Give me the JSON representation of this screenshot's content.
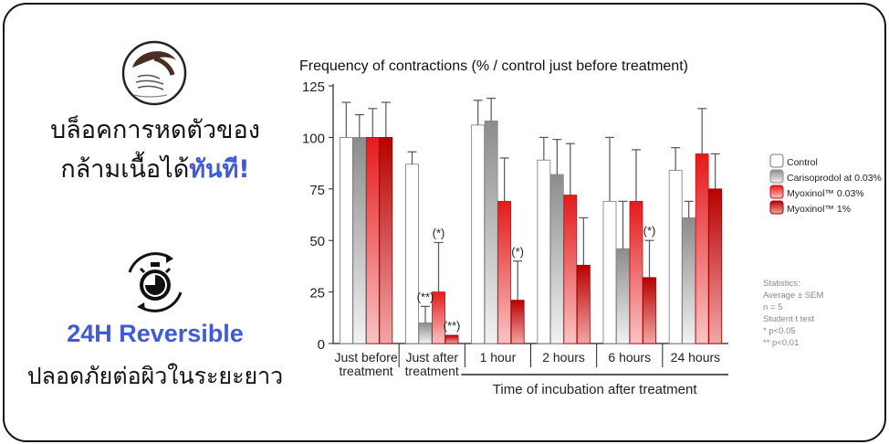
{
  "headline": {
    "line1": "บล็อคการหดตัวของ",
    "line2_prefix": "กล้ามเนื้อได้",
    "line2_accent": "ทันที!"
  },
  "reversible": {
    "title": "24H Reversible",
    "subtitle": "ปลอดภัยต่อผิวในระยะยาว"
  },
  "icons": {
    "face": "face-wrinkle-icon",
    "clock": "stopwatch-cycle-icon"
  },
  "colors": {
    "accent": "#3f5bd9",
    "series": [
      "#ffffff",
      "#9a9a9a",
      "#e41a1c",
      "#c00000"
    ]
  },
  "chart_data": {
    "type": "bar",
    "title": "Frequency of contractions (% / control just before treatment)",
    "xlabel": "Time of incubation after treatment",
    "ylim": [
      0,
      125
    ],
    "yticks": [
      0,
      25,
      50,
      75,
      100,
      125
    ],
    "categories": [
      [
        "Just before",
        "treatment"
      ],
      [
        "Just after",
        "treatment"
      ],
      [
        "1 hour"
      ],
      [
        "2 hours"
      ],
      [
        "6 hours"
      ],
      [
        "24 hours"
      ]
    ],
    "series": [
      {
        "name": "Control",
        "values": [
          100,
          87,
          106,
          89,
          69,
          84
        ],
        "errors": [
          17,
          6,
          12,
          11,
          31,
          11
        ]
      },
      {
        "name": "Carisoprodol at 0.03%",
        "values": [
          100,
          10,
          108,
          82,
          46,
          61
        ],
        "errors": [
          11,
          8,
          11,
          17,
          23,
          8
        ]
      },
      {
        "name": "Myoxinol™ 0.03%",
        "values": [
          100,
          25,
          69,
          72,
          69,
          92
        ],
        "errors": [
          14,
          24,
          21,
          25,
          25,
          22
        ]
      },
      {
        "name": "Myoxinol™ 1%",
        "values": [
          100,
          4,
          21,
          38,
          32,
          75
        ],
        "errors": [
          17,
          0,
          19,
          23,
          18,
          17
        ]
      }
    ],
    "annotations": [
      {
        "category": 1,
        "series": 1,
        "label": "(**)"
      },
      {
        "category": 1,
        "series": 2,
        "label": "(*)"
      },
      {
        "category": 1,
        "series": 3,
        "label": "(**)"
      },
      {
        "category": 2,
        "series": 3,
        "label": "(*)"
      },
      {
        "category": 4,
        "series": 3,
        "label": "(*)"
      }
    ],
    "statistics": [
      "Statistics:",
      "Average ± SEM",
      "n = 5",
      "Student t test",
      "*    p<0.05",
      "**   p<0.01"
    ],
    "legend_position": "right"
  }
}
